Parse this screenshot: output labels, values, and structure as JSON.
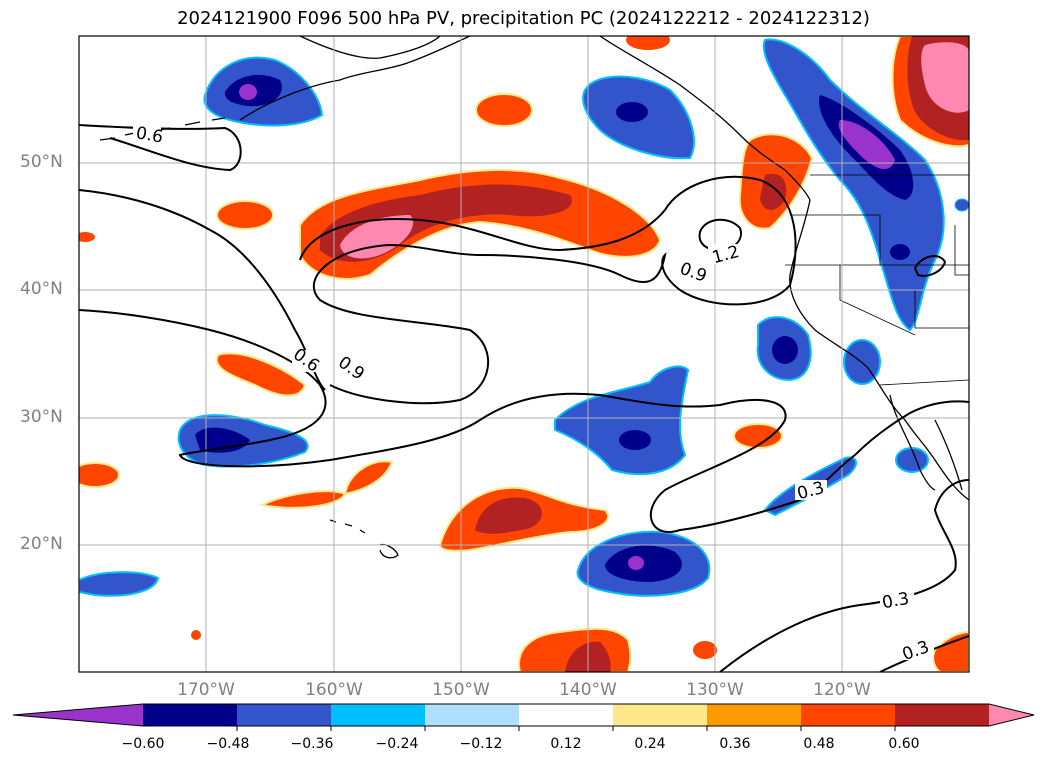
{
  "title": "2024121900 F096 500 hPa PV, precipitation PC (2024122212 - 2024122312)",
  "map": {
    "lon_range": [
      -180,
      -110
    ],
    "lat_range": [
      10,
      60
    ],
    "lat_ticks": [
      "50°N",
      "40°N",
      "30°N",
      "20°N"
    ],
    "lon_ticks": [
      "170°W",
      "160°W",
      "150°W",
      "140°W",
      "130°W",
      "120°W"
    ],
    "grid": true
  },
  "contour_labels": [
    "0.6",
    "1.2",
    "0.9",
    "0.6",
    "0.9",
    "0.3",
    "0.3",
    "0.3"
  ],
  "colorbar": {
    "extend": "both",
    "colors": [
      "#9933cc",
      "#00008b",
      "#3355cc",
      "#00bfff",
      "#b0e0ff",
      "#ffffff",
      "#ffe88a",
      "#ff9900",
      "#ff4500",
      "#b22222",
      "#ff88b0"
    ],
    "tick_labels": [
      "−0.60",
      "−0.48",
      "−0.36",
      "−0.24",
      "−0.12",
      "0.12",
      "0.24",
      "0.36",
      "0.48",
      "0.60"
    ]
  }
}
